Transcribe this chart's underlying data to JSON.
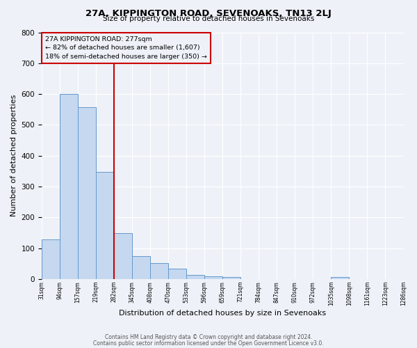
{
  "title": "27A, KIPPINGTON ROAD, SEVENOAKS, TN13 2LJ",
  "subtitle": "Size of property relative to detached houses in Sevenoaks",
  "xlabel": "Distribution of detached houses by size in Sevenoaks",
  "ylabel": "Number of detached properties",
  "bar_values": [
    128,
    600,
    557,
    348,
    150,
    75,
    52,
    33,
    14,
    10,
    7,
    0,
    0,
    0,
    0,
    0,
    7,
    0,
    0,
    0
  ],
  "bin_labels": [
    "31sqm",
    "94sqm",
    "157sqm",
    "219sqm",
    "282sqm",
    "345sqm",
    "408sqm",
    "470sqm",
    "533sqm",
    "596sqm",
    "659sqm",
    "721sqm",
    "784sqm",
    "847sqm",
    "910sqm",
    "972sqm",
    "1035sqm",
    "1098sqm",
    "1161sqm",
    "1223sqm",
    "1286sqm"
  ],
  "bar_color": "#c5d8f0",
  "bar_edge_color": "#6699cc",
  "vline_color": "#cc0000",
  "vline_pos": 4,
  "annotation_title": "27A KIPPINGTON ROAD: 277sqm",
  "annotation_line1": "← 82% of detached houses are smaller (1,607)",
  "annotation_line2": "18% of semi-detached houses are larger (350) →",
  "annotation_box_color": "#cc0000",
  "ylim": [
    0,
    800
  ],
  "yticks": [
    0,
    100,
    200,
    300,
    400,
    500,
    600,
    700,
    800
  ],
  "footer1": "Contains HM Land Registry data © Crown copyright and database right 2024.",
  "footer2": "Contains public sector information licensed under the Open Government Licence v3.0.",
  "bg_color": "#eef2f8",
  "grid_color": "#ffffff"
}
